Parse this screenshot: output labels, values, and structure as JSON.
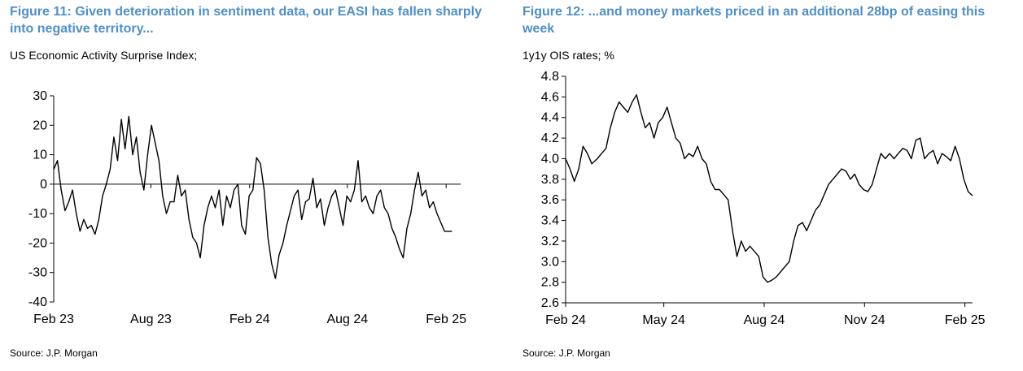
{
  "panels": [
    {
      "title": "Figure 11: Given deterioration in sentiment data, our EASI has fallen sharply into negative territory...",
      "subtitle": "US Economic Activity Surprise Index;",
      "source": "Source: J.P. Morgan"
    },
    {
      "title": "Figure 12: ...and money markets priced in an additional 28bp of easing this week",
      "subtitle": "1y1y OIS rates; %",
      "source": "Source: J.P. Morgan"
    }
  ],
  "chart_data": [
    {
      "type": "line",
      "title": "Figure 11: Given deterioration in sentiment data, our EASI has fallen sharply into negative territory...",
      "ylabel": "US Economic Activity Surprise Index;",
      "ylim": [
        -40,
        30
      ],
      "yticks": [
        30,
        20,
        10,
        0,
        -10,
        -20,
        -30,
        -40
      ],
      "xlim": [
        "2023-02-01",
        "2025-02-28"
      ],
      "xticks": [
        {
          "date": "2023-02-01",
          "label": "Feb 23"
        },
        {
          "date": "2023-08-01",
          "label": "Aug 23"
        },
        {
          "date": "2024-02-01",
          "label": "Feb 24"
        },
        {
          "date": "2024-08-01",
          "label": "Aug 24"
        },
        {
          "date": "2025-02-01",
          "label": "Feb 25"
        }
      ],
      "grid": false,
      "line_color": "#000000",
      "series": [
        {
          "x": [
            "2023-02-01",
            "2023-02-08",
            "2023-02-15",
            "2023-02-22",
            "2023-03-01",
            "2023-03-08",
            "2023-03-15",
            "2023-03-22",
            "2023-03-29",
            "2023-04-05",
            "2023-04-12",
            "2023-04-19",
            "2023-04-26",
            "2023-05-03",
            "2023-05-10",
            "2023-05-17",
            "2023-05-24",
            "2023-05-31",
            "2023-06-07",
            "2023-06-14",
            "2023-06-21",
            "2023-06-28",
            "2023-07-05",
            "2023-07-12",
            "2023-07-19",
            "2023-07-26",
            "2023-08-02",
            "2023-08-09",
            "2023-08-16",
            "2023-08-23",
            "2023-08-30",
            "2023-09-06",
            "2023-09-13",
            "2023-09-20",
            "2023-09-27",
            "2023-10-04",
            "2023-10-11",
            "2023-10-18",
            "2023-10-25",
            "2023-11-01",
            "2023-11-08",
            "2023-11-15",
            "2023-11-22",
            "2023-11-29",
            "2023-12-06",
            "2023-12-13",
            "2023-12-20",
            "2023-12-27",
            "2024-01-03",
            "2024-01-10",
            "2024-01-17",
            "2024-01-24",
            "2024-01-31",
            "2024-02-07",
            "2024-02-14",
            "2024-02-21",
            "2024-02-28",
            "2024-03-06",
            "2024-03-13",
            "2024-03-20",
            "2024-03-27",
            "2024-04-03",
            "2024-04-10",
            "2024-04-17",
            "2024-04-24",
            "2024-05-01",
            "2024-05-08",
            "2024-05-15",
            "2024-05-22",
            "2024-05-29",
            "2024-06-05",
            "2024-06-12",
            "2024-06-19",
            "2024-06-26",
            "2024-07-03",
            "2024-07-10",
            "2024-07-17",
            "2024-07-24",
            "2024-07-31",
            "2024-08-07",
            "2024-08-14",
            "2024-08-21",
            "2024-08-28",
            "2024-09-04",
            "2024-09-11",
            "2024-09-18",
            "2024-09-25",
            "2024-10-02",
            "2024-10-09",
            "2024-10-16",
            "2024-10-23",
            "2024-10-30",
            "2024-11-06",
            "2024-11-13",
            "2024-11-20",
            "2024-11-27",
            "2024-12-04",
            "2024-12-11",
            "2024-12-18",
            "2024-12-25",
            "2025-01-01",
            "2025-01-08",
            "2025-01-15",
            "2025-01-22",
            "2025-01-29",
            "2025-02-05",
            "2025-02-12"
          ],
          "y": [
            5,
            8,
            -2,
            -9,
            -6,
            -2,
            -10,
            -16,
            -12,
            -15,
            -14,
            -17,
            -12,
            -4,
            0,
            5,
            16,
            8,
            22,
            12,
            23,
            10,
            16,
            4,
            -2,
            10,
            20,
            14,
            8,
            -4,
            -10,
            -6,
            -6,
            3,
            -4,
            -2,
            -12,
            -18,
            -20,
            -25,
            -14,
            -8,
            -4,
            -8,
            -2,
            -14,
            -4,
            -8,
            -2,
            0,
            -14,
            -17,
            -4,
            -2,
            9,
            7,
            -2,
            -18,
            -27,
            -32,
            -24,
            -20,
            -14,
            -9,
            -4,
            -2,
            -12,
            -6,
            -5,
            2,
            -8,
            -5,
            -14,
            -8,
            -4,
            -2,
            -8,
            -14,
            -4,
            -6,
            -2,
            8,
            -6,
            -4,
            -8,
            -10,
            -4,
            -2,
            -8,
            -10,
            -15,
            -18,
            -22,
            -25,
            -15,
            -10,
            -2,
            4,
            -4,
            -2,
            -8,
            -6,
            -10,
            -13,
            -16,
            -16,
            -16
          ]
        }
      ]
    },
    {
      "type": "line",
      "title": "Figure 12: ...and money markets priced in an additional 28bp of easing this week",
      "ylabel": "1y1y OIS rates; %",
      "ylim": [
        2.6,
        4.8
      ],
      "yticks": [
        4.8,
        4.6,
        4.4,
        4.2,
        4.0,
        3.8,
        3.6,
        3.4,
        3.2,
        3.0,
        2.8,
        2.6
      ],
      "xlim": [
        "2024-02-01",
        "2025-02-08"
      ],
      "xticks": [
        {
          "date": "2024-02-01",
          "label": "Feb 24"
        },
        {
          "date": "2024-05-01",
          "label": "May 24"
        },
        {
          "date": "2024-08-01",
          "label": "Aug 24"
        },
        {
          "date": "2024-11-01",
          "label": "Nov 24"
        },
        {
          "date": "2025-02-01",
          "label": "Feb 25"
        }
      ],
      "grid": false,
      "line_color": "#000000",
      "series": [
        {
          "x": [
            "2024-02-01",
            "2024-02-05",
            "2024-02-09",
            "2024-02-13",
            "2024-02-17",
            "2024-02-21",
            "2024-02-25",
            "2024-03-01",
            "2024-03-05",
            "2024-03-09",
            "2024-03-13",
            "2024-03-17",
            "2024-03-21",
            "2024-03-25",
            "2024-03-29",
            "2024-04-02",
            "2024-04-06",
            "2024-04-10",
            "2024-04-14",
            "2024-04-18",
            "2024-04-22",
            "2024-04-26",
            "2024-04-30",
            "2024-05-04",
            "2024-05-08",
            "2024-05-12",
            "2024-05-16",
            "2024-05-20",
            "2024-05-24",
            "2024-05-28",
            "2024-06-01",
            "2024-06-05",
            "2024-06-09",
            "2024-06-13",
            "2024-06-17",
            "2024-06-21",
            "2024-06-25",
            "2024-06-29",
            "2024-07-03",
            "2024-07-07",
            "2024-07-11",
            "2024-07-15",
            "2024-07-19",
            "2024-07-23",
            "2024-07-27",
            "2024-07-31",
            "2024-08-04",
            "2024-08-08",
            "2024-08-12",
            "2024-08-16",
            "2024-08-20",
            "2024-08-24",
            "2024-08-28",
            "2024-09-01",
            "2024-09-05",
            "2024-09-09",
            "2024-09-13",
            "2024-09-17",
            "2024-09-21",
            "2024-09-25",
            "2024-09-29",
            "2024-10-03",
            "2024-10-07",
            "2024-10-11",
            "2024-10-15",
            "2024-10-19",
            "2024-10-23",
            "2024-10-27",
            "2024-10-31",
            "2024-11-04",
            "2024-11-08",
            "2024-11-12",
            "2024-11-16",
            "2024-11-20",
            "2024-11-24",
            "2024-11-28",
            "2024-12-02",
            "2024-12-06",
            "2024-12-10",
            "2024-12-14",
            "2024-12-18",
            "2024-12-22",
            "2024-12-26",
            "2024-12-30",
            "2025-01-03",
            "2025-01-07",
            "2025-01-11",
            "2025-01-15",
            "2025-01-19",
            "2025-01-23",
            "2025-01-27",
            "2025-01-31",
            "2025-02-04",
            "2025-02-08"
          ],
          "y": [
            4.0,
            3.9,
            3.78,
            3.9,
            4.12,
            4.05,
            3.95,
            4.0,
            4.05,
            4.1,
            4.3,
            4.45,
            4.55,
            4.5,
            4.45,
            4.55,
            4.62,
            4.45,
            4.3,
            4.35,
            4.2,
            4.35,
            4.4,
            4.5,
            4.35,
            4.2,
            4.15,
            4.0,
            4.05,
            4.02,
            4.12,
            4.0,
            3.95,
            3.78,
            3.7,
            3.7,
            3.65,
            3.6,
            3.3,
            3.05,
            3.2,
            3.1,
            3.15,
            3.1,
            3.05,
            2.85,
            2.8,
            2.82,
            2.85,
            2.9,
            2.95,
            3.0,
            3.2,
            3.35,
            3.38,
            3.3,
            3.4,
            3.5,
            3.55,
            3.65,
            3.75,
            3.8,
            3.85,
            3.9,
            3.88,
            3.8,
            3.85,
            3.75,
            3.7,
            3.68,
            3.75,
            3.9,
            4.05,
            4.0,
            4.05,
            4.0,
            4.05,
            4.1,
            4.08,
            4.0,
            4.18,
            4.2,
            4.0,
            4.05,
            4.08,
            3.95,
            4.05,
            4.02,
            3.98,
            4.12,
            4.0,
            3.8,
            3.68,
            3.64
          ]
        }
      ]
    }
  ]
}
